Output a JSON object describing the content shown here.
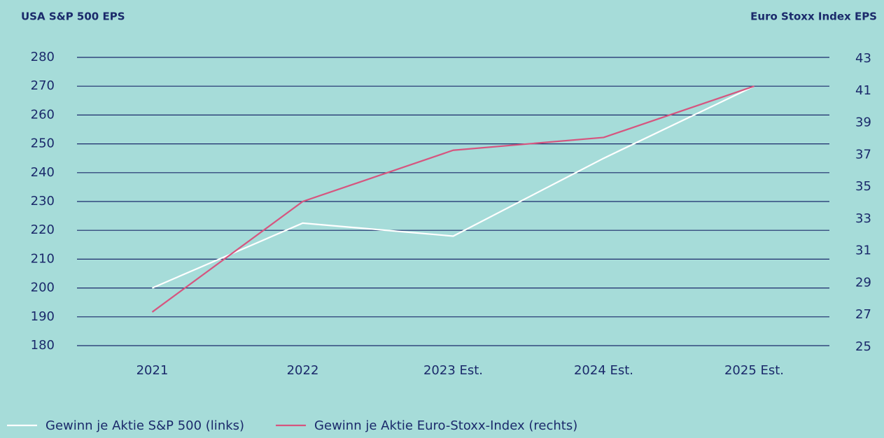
{
  "chart_data": {
    "type": "line",
    "y_label": "USA S&P 500 EPS",
    "y2_label": "Euro Stoxx Index EPS",
    "categories": [
      "2021",
      "2022",
      "2023 Est.",
      "2024 Est.",
      "2025 Est."
    ],
    "series": [
      {
        "name": "Gewinn je Aktie S&P 500 (links)",
        "color": "#ffffff",
        "values": [
          200,
          222.5,
          218,
          245,
          270
        ]
      },
      {
        "name": "Gewinn je Aktie Euro-Stoxx-Index (rechts)",
        "color": "#d6557f",
        "values": [
          27.1,
          34.0,
          37.2,
          38.0,
          41.2
        ],
        "axis": "y2"
      }
    ],
    "ylim": [
      180,
      280
    ],
    "yticks": [
      180,
      190,
      200,
      210,
      220,
      230,
      240,
      250,
      260,
      270,
      280
    ],
    "y2lim": [
      25,
      43
    ],
    "y2ticks": [
      25,
      27,
      29,
      31,
      33,
      35,
      37,
      39,
      41,
      43
    ],
    "grid": true,
    "grid_color": "#1b2a6b",
    "background": "#a6dcd9",
    "legend": "bottom-left"
  }
}
